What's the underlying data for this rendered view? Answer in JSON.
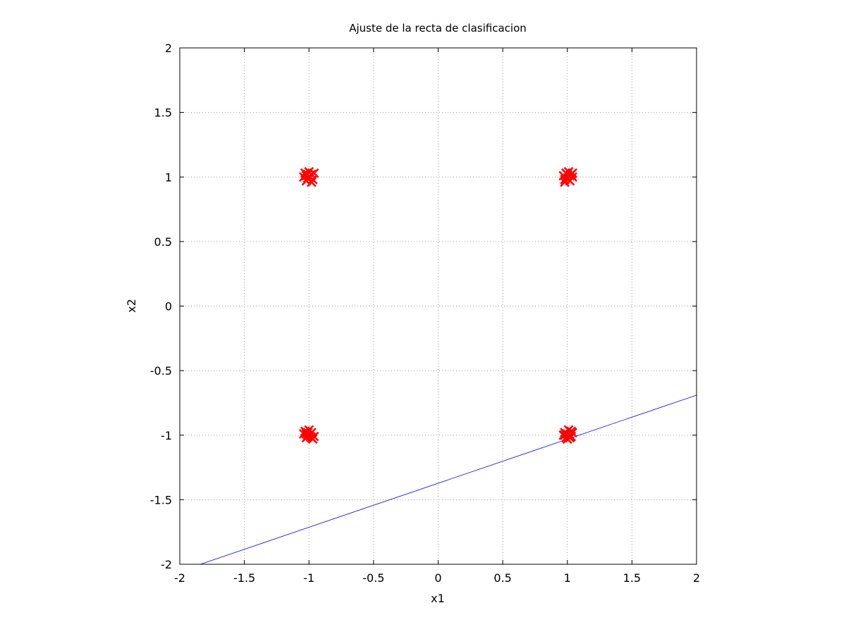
{
  "chart_data": {
    "type": "scatter",
    "title": "Ajuste de la recta de clasificacion",
    "xlabel": "x1",
    "ylabel": "x2",
    "xlim": [
      -2,
      2
    ],
    "ylim": [
      -2,
      2
    ],
    "xticks": [
      "-2",
      "-1.5",
      "-1",
      "-0.5",
      "0",
      "0.5",
      "1",
      "1.5",
      "2"
    ],
    "yticks": [
      "-2",
      "-1.5",
      "-1",
      "-0.5",
      "0",
      "0.5",
      "1",
      "1.5",
      "2"
    ],
    "grid": true,
    "colors": {
      "points": "#ff0000",
      "line": "#0000ff",
      "grid": "#a0a0a0",
      "frame": "#000000"
    },
    "series": [
      {
        "type": "scatter",
        "marker": "x",
        "points": [
          [
            -1.03,
            1.03
          ],
          [
            -1.01,
            0.99
          ],
          [
            -0.98,
            1.02
          ],
          [
            -1.02,
            0.97
          ],
          [
            -0.99,
            1.0
          ],
          [
            -1.04,
            1.0
          ],
          [
            -0.97,
            0.98
          ],
          [
            -1.0,
            1.04
          ],
          [
            -1.02,
            1.01
          ],
          [
            -0.98,
            0.96
          ],
          [
            -1.01,
            1.02
          ],
          [
            -0.96,
            1.03
          ],
          [
            1.03,
            1.02
          ],
          [
            1.0,
            0.99
          ],
          [
            0.97,
            1.01
          ],
          [
            1.02,
            0.97
          ],
          [
            0.99,
            1.03
          ],
          [
            1.04,
            1.0
          ],
          [
            0.98,
            0.98
          ],
          [
            1.01,
            1.04
          ],
          [
            1.02,
            1.01
          ],
          [
            0.98,
            0.96
          ],
          [
            1.0,
            1.02
          ],
          [
            1.04,
            1.03
          ],
          [
            -1.03,
            -0.97
          ],
          [
            -1.01,
            -1.0
          ],
          [
            -0.98,
            -0.98
          ],
          [
            -1.02,
            -1.02
          ],
          [
            -0.99,
            -1.01
          ],
          [
            -1.04,
            -0.99
          ],
          [
            -0.97,
            -1.03
          ],
          [
            -1.0,
            -0.96
          ],
          [
            -1.02,
            -0.99
          ],
          [
            -0.98,
            -1.02
          ],
          [
            -1.01,
            -0.98
          ],
          [
            -0.96,
            -1.01
          ],
          [
            0.97,
            -1.0
          ],
          [
            1.0,
            -0.99
          ],
          [
            1.03,
            -0.97
          ],
          [
            1.02,
            -1.02
          ],
          [
            0.99,
            -1.02
          ],
          [
            1.04,
            -0.98
          ],
          [
            0.98,
            -1.0
          ],
          [
            1.01,
            -0.96
          ],
          [
            1.02,
            -1.0
          ],
          [
            0.98,
            -0.98
          ],
          [
            1.03,
            -1.01
          ],
          [
            1.0,
            -1.03
          ]
        ]
      },
      {
        "type": "line",
        "x": [
          -1.84,
          2.0
        ],
        "y": [
          -2.0,
          -0.69
        ]
      }
    ]
  }
}
